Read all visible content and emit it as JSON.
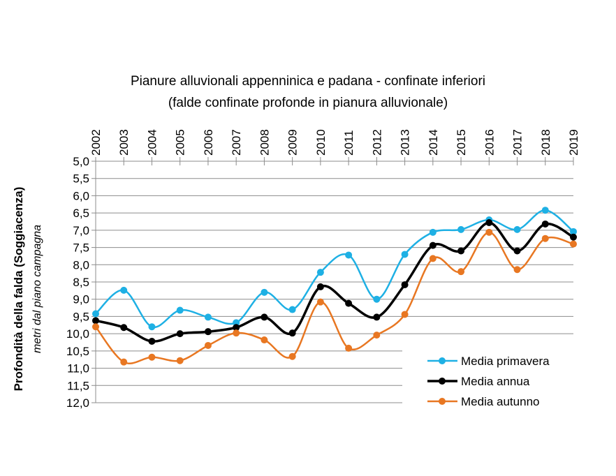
{
  "chart_data": {
    "type": "line",
    "title": "Pianure alluvionali  appenninica e padana - confinate inferiori",
    "subtitle": "(falde confinate profonde in pianura alluvionale)",
    "ylabel": "Profondità della falda (Soggiacenza)",
    "ylabel_sub": "metri dal piano campagna",
    "xlabel": "",
    "x": [
      "2002",
      "2003",
      "2004",
      "2005",
      "2006",
      "2007",
      "2008",
      "2009",
      "2010",
      "2011",
      "2012",
      "2013",
      "2014",
      "2015",
      "2016",
      "2017",
      "2018",
      "2019"
    ],
    "ylim": [
      5.0,
      12.0
    ],
    "y_inverted": true,
    "x_axis_position": "top",
    "y_ticks": [
      "5,0",
      "5,5",
      "6,0",
      "6,5",
      "7,0",
      "7,5",
      "8,0",
      "8,5",
      "9,0",
      "9,5",
      "10,0",
      "10,5",
      "11,0",
      "11,5",
      "12,0"
    ],
    "grid": true,
    "legend_position": "bottom-right",
    "smooth": true,
    "series": [
      {
        "name": "Media primavera",
        "color": "#1eb0e4",
        "values": [
          9.42,
          8.74,
          9.8,
          9.32,
          9.52,
          9.68,
          8.8,
          9.3,
          8.22,
          7.72,
          9.0,
          7.7,
          7.06,
          6.98,
          6.7,
          6.98,
          6.42,
          7.04
        ]
      },
      {
        "name": "Media annua",
        "color": "#000000",
        "values": [
          9.62,
          9.82,
          10.22,
          10.0,
          9.94,
          9.82,
          9.52,
          9.98,
          8.64,
          9.12,
          9.52,
          8.58,
          7.44,
          7.6,
          6.78,
          7.6,
          6.82,
          7.2
        ]
      },
      {
        "name": "Media autunno",
        "color": "#e87722",
        "values": [
          9.8,
          10.82,
          10.68,
          10.78,
          10.34,
          9.98,
          10.18,
          10.66,
          9.08,
          10.42,
          10.04,
          9.44,
          7.82,
          8.2,
          7.06,
          8.14,
          7.24,
          7.4
        ]
      }
    ]
  }
}
